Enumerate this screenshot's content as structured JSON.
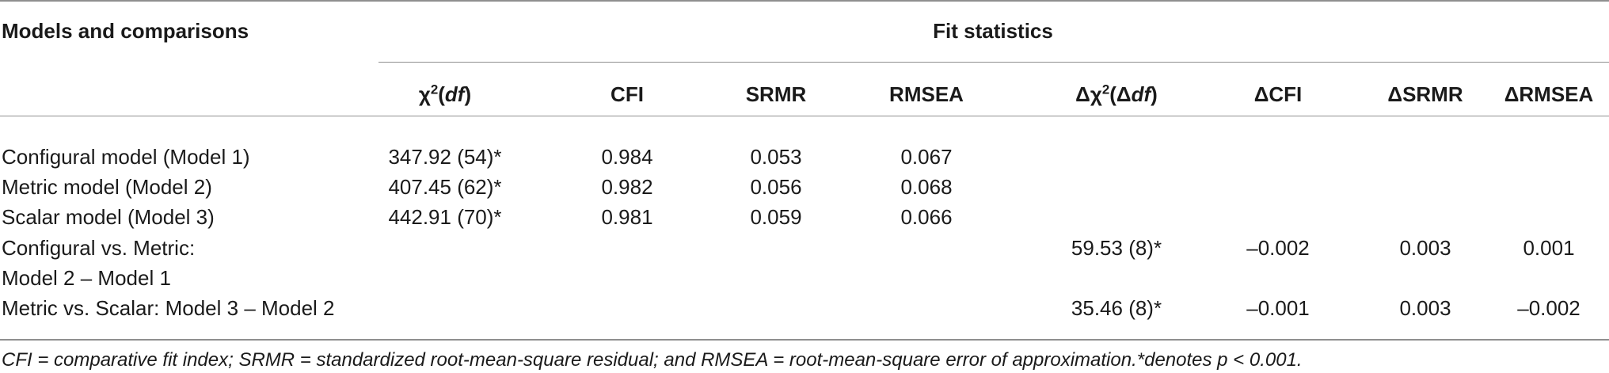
{
  "table": {
    "row_header_label": "Models and comparisons",
    "group_header": "Fit statistics",
    "columns": [
      {
        "id": "chi2",
        "label_html": "χ<sup>2</sup>(<b><i>df</i></b>)"
      },
      {
        "id": "cfi",
        "label": "CFI"
      },
      {
        "id": "srmr",
        "label": "SRMR"
      },
      {
        "id": "rmsea",
        "label": "RMSEA"
      },
      {
        "id": "dchi2",
        "label_html": "Δχ<sup>2</sup>(Δ<i>df</i>)"
      },
      {
        "id": "dcfi",
        "label": "ΔCFI"
      },
      {
        "id": "dsrmr",
        "label": "ΔSRMR"
      },
      {
        "id": "drmsea",
        "label": "ΔRMSEA"
      }
    ],
    "rows": [
      {
        "label": "Configural model (Model 1)",
        "chi2": "347.92 (54)*",
        "cfi": "0.984",
        "srmr": "0.053",
        "rmsea": "0.067",
        "dchi2": "",
        "dcfi": "",
        "dsrmr": "",
        "drmsea": ""
      },
      {
        "label": "Metric model (Model 2)",
        "chi2": "407.45 (62)*",
        "cfi": "0.982",
        "srmr": "0.056",
        "rmsea": "0.068",
        "dchi2": "",
        "dcfi": "",
        "dsrmr": "",
        "drmsea": ""
      },
      {
        "label": "Scalar model (Model 3)",
        "chi2": "442.91 (70)*",
        "cfi": "0.981",
        "srmr": "0.059",
        "rmsea": "0.066",
        "dchi2": "",
        "dcfi": "",
        "dsrmr": "",
        "drmsea": ""
      },
      {
        "label": "Configural vs. Metric:",
        "chi2": "",
        "cfi": "",
        "srmr": "",
        "rmsea": "",
        "dchi2": "59.53 (8)*",
        "dcfi": "–0.002",
        "dsrmr": "0.003",
        "drmsea": "0.001"
      },
      {
        "label": "Model 2 – Model 1",
        "chi2": "",
        "cfi": "",
        "srmr": "",
        "rmsea": "",
        "dchi2": "",
        "dcfi": "",
        "dsrmr": "",
        "drmsea": ""
      },
      {
        "label": "Metric vs. Scalar: Model 3 – Model 2",
        "chi2": "",
        "cfi": "",
        "srmr": "",
        "rmsea": "",
        "dchi2": "35.46 (8)*",
        "dcfi": "–0.001",
        "dsrmr": "0.003",
        "drmsea": "–0.002"
      }
    ]
  },
  "footnote": "CFI = comparative fit index; SRMR = standardized root-mean-square residual; and RMSEA = root-mean-square error of approximation.*denotes p < 0.001."
}
